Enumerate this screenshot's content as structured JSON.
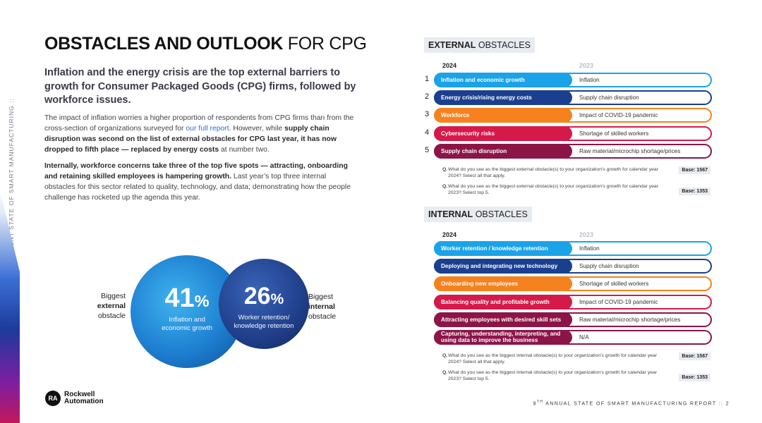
{
  "side_text": ":: THE CURRENT STATE OF SMART MANUFACTURING ::",
  "title": {
    "bold": "OBSTACLES AND OUTLOOK",
    "light": "FOR CPG"
  },
  "lead": "Inflation and the energy crisis are the top external barriers to growth for Consumer Packaged Goods (CPG) firms, followed by workforce issues.",
  "paragraph1": {
    "t1": "The impact of inflation worries a higher proportion of respondents from CPG firms than from the cross-section of organizations surveyed for ",
    "link": "our full report",
    "t2": ". However, while ",
    "b1": "supply chain disruption was second on the list of external obstacles for CPG last year, it has now dropped to fifth place — replaced by energy costs",
    "t3": " at number two."
  },
  "paragraph2": {
    "b1": "Internally, workforce concerns take three of the top five spots — attracting, onboarding and retaining skilled employees is hampering growth.",
    "t1": " Last year’s top three internal obstacles for this sector related to quality, technology, and data; demonstrating how the people challenge has rocketed up the agenda this year."
  },
  "stats": {
    "external": {
      "value": "41",
      "unit": "%",
      "caption": "Inflation and economic growth",
      "label_pre": "Biggest",
      "label_bold": "external",
      "label_post": "obstacle"
    },
    "internal": {
      "value": "26",
      "unit": "%",
      "caption": "Worker retention/ knowledge retention",
      "label_pre": "Biggest",
      "label_bold": "internal",
      "label_post": "obstacle"
    }
  },
  "logo": {
    "mark": "RA",
    "line1": "Rockwell",
    "line2": "Automation"
  },
  "footer": {
    "num": "9",
    "sup": "TH",
    "text": " ANNUAL STATE OF SMART MANUFACTURING REPORT :: 2"
  },
  "external": {
    "heading_bold": "EXTERNAL",
    "heading_light": "OBSTACLES",
    "year_current": "2024",
    "year_prior": "2023",
    "rows": [
      {
        "rank": "1",
        "current": "Inflation and economic growth",
        "prior": "Inflation",
        "color": "#1aa3e8"
      },
      {
        "rank": "2",
        "current": "Energy crisis/rising energy costs",
        "prior": "Supply chain disruption",
        "color": "#1b3f8f"
      },
      {
        "rank": "3",
        "current": "Workforce",
        "prior": "Impact of COVID-19 pandemic",
        "color": "#f5821f"
      },
      {
        "rank": "4",
        "current": "Cybersecurity risks",
        "prior": "Shortage of skilled workers",
        "color": "#d51a4a"
      },
      {
        "rank": "5",
        "current": "Supply chain disruption",
        "prior": "Raw material/microchip shortage/prices",
        "color": "#8c1547"
      }
    ],
    "notes": [
      {
        "q": "Q.",
        "text": "What do you see as the biggest external obstacle(s) to your organization’s growth for calendar year 2024? Select all that apply.",
        "base": "Base: 1567"
      },
      {
        "q": "Q.",
        "text": "What do you see as the biggest external obstacle(s) to your organization’s growth for calendar year 2023? Select top 5.",
        "base": "Base: 1353"
      }
    ]
  },
  "internal": {
    "heading_bold": "INTERNAL",
    "heading_light": "OBSTACLES",
    "year_current": "2024",
    "year_prior": "2023",
    "rows": [
      {
        "current": "Worker retention / knowledge retention",
        "prior": "Inflation",
        "color": "#1aa3e8"
      },
      {
        "current": "Deploying and integrating new technology",
        "prior": "Supply chain disruption",
        "color": "#1b3f8f"
      },
      {
        "current": "Onboarding new employees",
        "prior": "Shortage of skilled workers",
        "color": "#f5821f"
      },
      {
        "current": "Balancing quality and profitable growth",
        "prior": "Impact of COVID-19 pandemic",
        "color": "#d51a4a"
      },
      {
        "current": "Attracting employees with desired skill sets",
        "prior": "Raw material/microchip shortage/prices",
        "color": "#8c1547"
      },
      {
        "current": "Capturing, understanding, interpreting, and using data to improve the business",
        "prior": "N/A",
        "color": "#8c1547"
      }
    ],
    "notes": [
      {
        "q": "Q.",
        "text": "What do you see as the biggest internal obstacle(s) to your organization’s growth for calendar year 2024? Select all that apply.",
        "base": "Base: 1567"
      },
      {
        "q": "Q.",
        "text": "What do you see as the biggest internal obstacle(s) to your organization’s growth for calendar year 2023? Select top 5.",
        "base": "Base: 1353"
      }
    ]
  }
}
